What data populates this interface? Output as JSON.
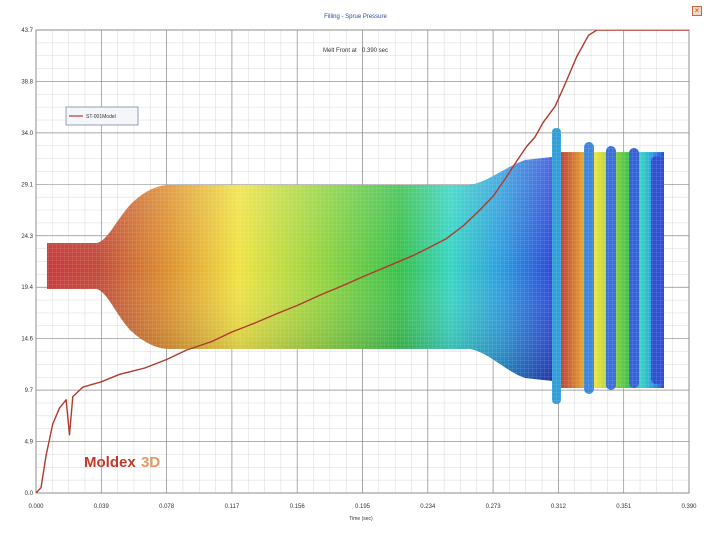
{
  "window": {
    "title": "Filling - Sprue Pressure",
    "close_icon": "close-icon"
  },
  "annotation": {
    "label": "Melt Front at",
    "value": "0.390 sec"
  },
  "watermark": {
    "brand": "Moldex",
    "suffix": "3D",
    "brand_color": "#c0392b",
    "suffix_color": "#e59866"
  },
  "chart_data": {
    "type": "line",
    "title": "Filling - Sprue Pressure",
    "xlabel": "Time (sec)",
    "ylabel": "",
    "xlim": [
      0.0,
      0.39
    ],
    "ylim": [
      0.0,
      43.7
    ],
    "x_ticks": [
      "0.000",
      "0.039",
      "0.078",
      "0.117",
      "0.156",
      "0.195",
      "0.234",
      "0.273",
      "0.312",
      "0.351",
      "0.390"
    ],
    "y_ticks": [
      "0.0",
      "4.9",
      "9.7",
      "14.6",
      "19.4",
      "24.3",
      "29.1",
      "34.0",
      "38.8",
      "43.7"
    ],
    "grid": true,
    "legend_position": "top-left",
    "series": [
      {
        "name": "ST-001Model",
        "color": "#b03a2e",
        "points": [
          [
            0.0,
            0.0
          ],
          [
            0.003,
            0.5
          ],
          [
            0.006,
            3.5
          ],
          [
            0.01,
            6.5
          ],
          [
            0.014,
            8.0
          ],
          [
            0.018,
            8.8
          ],
          [
            0.02,
            5.5
          ],
          [
            0.022,
            9.1
          ],
          [
            0.028,
            10.0
          ],
          [
            0.039,
            10.5
          ],
          [
            0.05,
            11.2
          ],
          [
            0.065,
            11.8
          ],
          [
            0.078,
            12.6
          ],
          [
            0.09,
            13.5
          ],
          [
            0.105,
            14.3
          ],
          [
            0.117,
            15.2
          ],
          [
            0.13,
            16.0
          ],
          [
            0.145,
            17.0
          ],
          [
            0.156,
            17.7
          ],
          [
            0.17,
            18.7
          ],
          [
            0.185,
            19.7
          ],
          [
            0.195,
            20.4
          ],
          [
            0.21,
            21.4
          ],
          [
            0.225,
            22.4
          ],
          [
            0.234,
            23.1
          ],
          [
            0.245,
            24.0
          ],
          [
            0.255,
            25.2
          ],
          [
            0.265,
            26.7
          ],
          [
            0.273,
            28.0
          ],
          [
            0.28,
            29.6
          ],
          [
            0.287,
            31.3
          ],
          [
            0.293,
            32.7
          ],
          [
            0.298,
            33.6
          ],
          [
            0.303,
            35.0
          ],
          [
            0.31,
            36.5
          ],
          [
            0.316,
            38.6
          ],
          [
            0.323,
            41.2
          ],
          [
            0.33,
            43.2
          ],
          [
            0.335,
            43.7
          ],
          [
            0.39,
            43.7
          ]
        ]
      }
    ]
  }
}
